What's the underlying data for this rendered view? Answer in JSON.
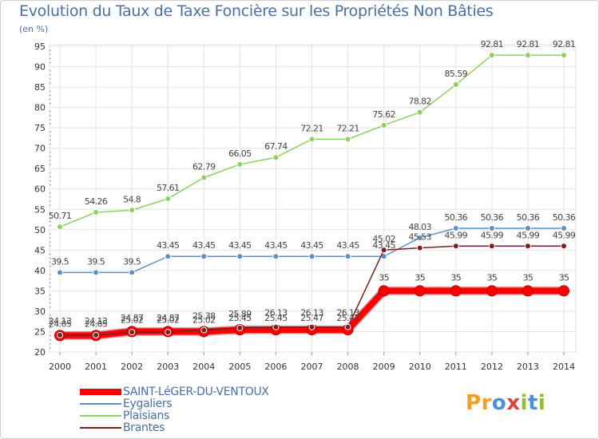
{
  "title": "Evolution du Taux de Taxe Foncière sur les Propriétés Non Bâties",
  "unit_label": "(en %)",
  "logo": {
    "text": "Proxiti",
    "letters": [
      "P",
      "r",
      "o",
      "x",
      "i",
      "t",
      "i"
    ],
    "colors": [
      "#f0a020",
      "#f0a020",
      "#4a8fd8",
      "#e04040",
      "#90c030",
      "#4a8fd8",
      "#90c030"
    ]
  },
  "chart_data": {
    "type": "line",
    "title": "Evolution du Taux de Taxe Foncière sur les Propriétés Non Bâties",
    "ylabel": "(en %)",
    "xlabel": "",
    "x": [
      "2000",
      "2001",
      "2002",
      "2003",
      "2004",
      "2005",
      "2006",
      "2007",
      "2008",
      "2009",
      "2010",
      "2011",
      "2012",
      "2013",
      "2014"
    ],
    "ylim": [
      20,
      95
    ],
    "yticks": [
      20,
      25,
      30,
      35,
      40,
      45,
      50,
      55,
      60,
      65,
      70,
      75,
      80,
      85,
      90,
      95
    ],
    "grid": true,
    "legend_position": "bottom-left",
    "series": [
      {
        "name": "SAINT-LéGER-DU-VENTOUX",
        "color": "#ff0000",
        "width": "thick",
        "values": [
          24.05,
          24.05,
          25.02,
          25.02,
          25.02,
          25.45,
          25.45,
          25.47,
          25.47,
          35,
          35,
          35,
          35,
          35,
          35
        ],
        "labels": [
          "24.05",
          "24.05",
          "25.02",
          "25.02",
          "25.02",
          "25.45",
          "25.45",
          "25.47",
          "25.47",
          "35",
          "35",
          "35",
          "35",
          "35",
          "35"
        ]
      },
      {
        "name": "Eygaliers",
        "color": "#5a8fc8",
        "width": "thin",
        "values": [
          39.5,
          39.5,
          39.5,
          43.45,
          43.45,
          43.45,
          43.45,
          43.45,
          43.45,
          43.45,
          48.03,
          50.36,
          50.36,
          50.36,
          50.36
        ],
        "labels": [
          "39.5",
          "39.5",
          "39.5",
          "43.45",
          "43.45",
          "43.45",
          "43.45",
          "43.45",
          "43.45",
          "43.45",
          "48.03",
          "50.36",
          "50.36",
          "50.36",
          "50.36"
        ]
      },
      {
        "name": "Plaisians",
        "color": "#8cd060",
        "width": "thin",
        "values": [
          50.71,
          54.26,
          54.8,
          57.61,
          62.79,
          66.05,
          67.74,
          72.21,
          72.21,
          75.62,
          78.82,
          85.59,
          92.81,
          92.81,
          92.81
        ],
        "labels": [
          "50.71",
          "54.26",
          "54.8",
          "57.61",
          "62.79",
          "66.05",
          "67.74",
          "72.21",
          "72.21",
          "75.62",
          "78.82",
          "85.59",
          "92.81",
          "92.81",
          "92.81"
        ]
      },
      {
        "name": "Brantes",
        "color": "#7a2020",
        "width": "thin",
        "values": [
          24.13,
          24.13,
          24.87,
          24.87,
          25.38,
          25.89,
          26.13,
          26.13,
          26.13,
          45.02,
          45.53,
          45.99,
          45.99,
          45.99,
          45.99
        ],
        "labels": [
          "24.13",
          "24.13",
          "24.87",
          "24.87",
          "25.38",
          "25.89",
          "26.13",
          "26.13",
          "26.13",
          "45.02",
          "45.53",
          "45.99",
          "45.99",
          "45.99",
          "45.99"
        ]
      }
    ]
  }
}
